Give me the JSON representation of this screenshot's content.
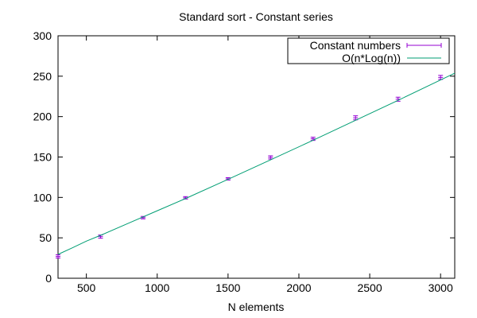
{
  "chart_data": {
    "type": "scatter",
    "title": "Standard sort - Constant series",
    "xlabel": "N elements",
    "ylabel": "",
    "xlim": [
      300,
      3100
    ],
    "ylim": [
      0,
      300
    ],
    "xticks": [
      500,
      1000,
      1500,
      2000,
      2500,
      3000
    ],
    "yticks": [
      0,
      50,
      100,
      150,
      200,
      250,
      300
    ],
    "grid": false,
    "legend_position": "top-right",
    "series": [
      {
        "name": "Constant numbers",
        "kind": "errorbars",
        "color": "#9400d3",
        "x": [
          300,
          600,
          900,
          1200,
          1500,
          1800,
          2100,
          2400,
          2700,
          3000
        ],
        "y": [
          27,
          51.5,
          75,
          99.5,
          123,
          149.5,
          172.5,
          198.5,
          221.5,
          248.5
        ],
        "err": [
          2,
          2,
          1.5,
          1.5,
          1.5,
          2,
          2,
          2.5,
          2.5,
          2.5
        ]
      },
      {
        "name": "O(n*Log(n))",
        "kind": "line",
        "color": "#009e73",
        "x": [
          300,
          400,
          500,
          600,
          800,
          1000,
          1200,
          1500,
          1800,
          2100,
          2400,
          2700,
          3000,
          3100
        ],
        "y": [
          29.5,
          37.6,
          45.9,
          53.1,
          68.3,
          83.5,
          98.6,
          122.4,
          146.5,
          170.7,
          195.4,
          220.1,
          245.3,
          253.7
        ]
      }
    ]
  }
}
